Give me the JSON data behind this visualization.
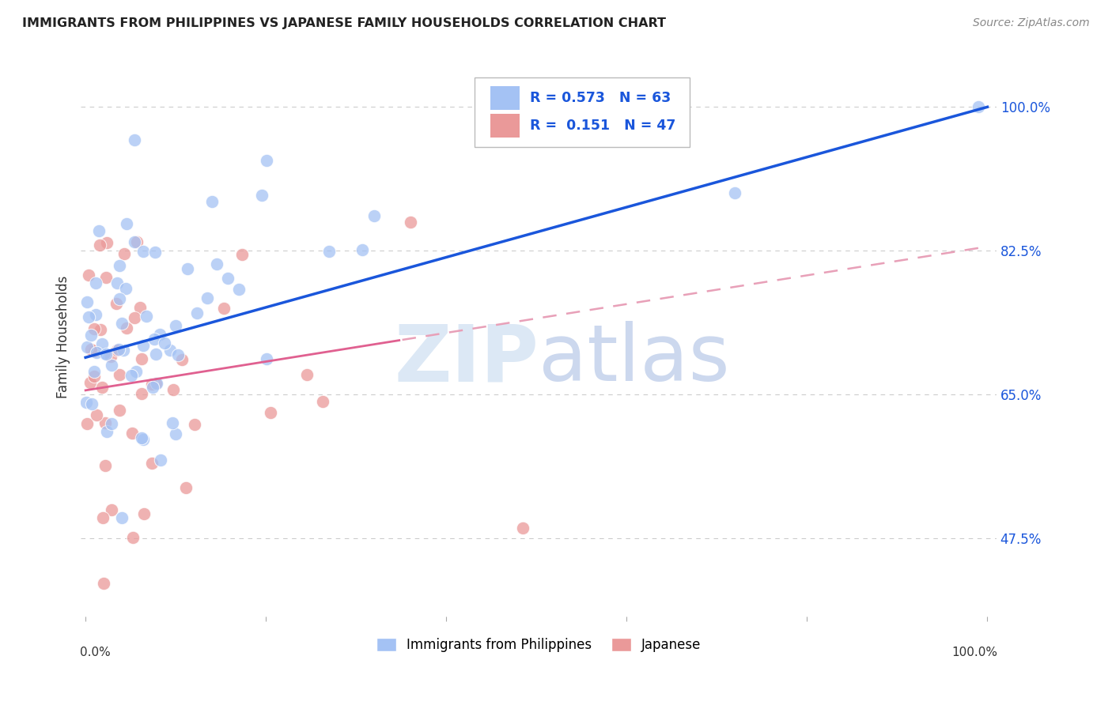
{
  "title": "IMMIGRANTS FROM PHILIPPINES VS JAPANESE FAMILY HOUSEHOLDS CORRELATION CHART",
  "source": "Source: ZipAtlas.com",
  "ylabel": "Family Households",
  "ytick_vals": [
    0.475,
    0.65,
    0.825,
    1.0
  ],
  "ytick_labels": [
    "47.5%",
    "65.0%",
    "82.5%",
    "100.0%"
  ],
  "blue_R": 0.573,
  "blue_N": 63,
  "pink_R": 0.151,
  "pink_N": 47,
  "blue_color": "#a4c2f4",
  "pink_color": "#ea9999",
  "blue_line_color": "#1a56db",
  "pink_line_color": "#e06090",
  "pink_dash_color": "#e8a0b8",
  "grid_color": "#cccccc",
  "bg_color": "#ffffff",
  "title_color": "#222222",
  "watermark_zip_color": "#c5d8f0",
  "watermark_atlas_color": "#c5cfe8",
  "xlim": [
    -0.005,
    1.01
  ],
  "ylim": [
    0.38,
    1.06
  ],
  "blue_intercept": 0.695,
  "blue_slope": 0.305,
  "pink_intercept": 0.655,
  "pink_slope": 0.175
}
